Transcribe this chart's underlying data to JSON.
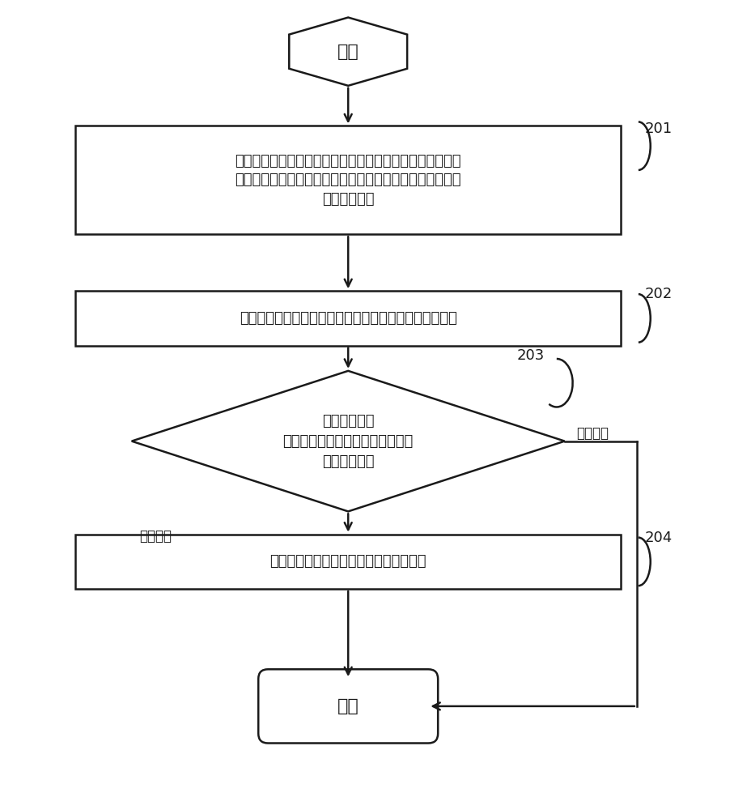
{
  "bg_color": "#ffffff",
  "line_color": "#1a1a1a",
  "text_color": "#1a1a1a",
  "title": "开始",
  "end_label": "结束",
  "box1_text": "在测试治具的连接线插头插入显示屏的连接器接口后，监测\n到为显示屏供电事件被触发时，控制测试治具输出显示屏的\n最低工作电压",
  "box1_num": "201",
  "box2_text": "通过信号引脚发送读取控制芯片中的预设信息的读取请求",
  "box2_num": "202",
  "diamond_text": "将读取请求的\n反馈结果与测试治具中存储的标准\n信息进行匹配",
  "diamond_num": "203",
  "diamond_fail_label": "匹配失败",
  "diamond_success_label": "匹配成功",
  "box3_text": "控制测试治具输出显示屏的剩余工作电压",
  "box3_num": "204"
}
